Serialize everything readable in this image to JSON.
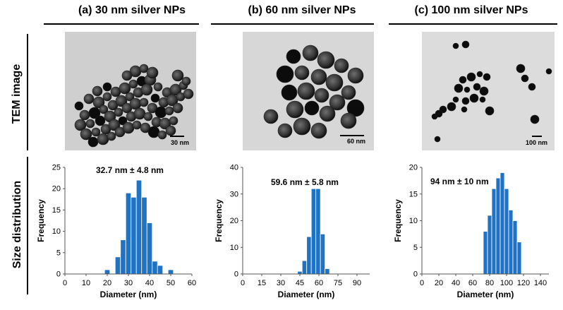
{
  "columns": [
    {
      "title": "(a) 30 nm silver NPs",
      "scale_bar": "30 nm"
    },
    {
      "title": "(b) 60 nm silver NPs",
      "scale_bar": "60 nm"
    },
    {
      "title": "(c) 100 nm silver NPs",
      "scale_bar": "100 nm"
    }
  ],
  "rows": {
    "tem": "TEM image",
    "size": "Size distribution"
  },
  "colors": {
    "bar": "#1f72c4",
    "tem_bg_a": "#cfcfcf",
    "tem_bg_b": "#d7d7d7",
    "tem_bg_c": "#dcdcdc"
  },
  "chart_data": [
    {
      "type": "bar",
      "annotation": "32.7 nm ± 4.8 nm",
      "xlabel": "Diameter (nm)",
      "ylabel": "Frequency",
      "xlim": [
        0,
        60
      ],
      "ylim": [
        0,
        25
      ],
      "xticks": [
        0,
        10,
        20,
        30,
        40,
        50,
        60
      ],
      "yticks": [
        0,
        5,
        10,
        15,
        20,
        25
      ],
      "bin_width": 2.5,
      "x": [
        17.5,
        20,
        22.5,
        25,
        27.5,
        30,
        32.5,
        35,
        37.5,
        40,
        42.5,
        45,
        47.5,
        50,
        52.5
      ],
      "values": [
        0,
        1,
        0,
        4,
        8,
        19,
        18,
        22,
        18,
        12,
        3,
        2,
        0,
        1,
        0
      ]
    },
    {
      "type": "bar",
      "annotation": "59.6 nm ± 5.8 nm",
      "xlabel": "Diameter (nm)",
      "ylabel": "Frequency",
      "xlim": [
        0,
        100
      ],
      "ylim": [
        0,
        40
      ],
      "xticks": [
        0,
        15,
        30,
        45,
        60,
        75,
        90
      ],
      "yticks": [
        0,
        10,
        20,
        30,
        40
      ],
      "bin_width": 3.6,
      "x": [
        45,
        48.6,
        52.2,
        55.8,
        59.4,
        63,
        66.6,
        70.2,
        73.8
      ],
      "values": [
        1,
        5,
        14,
        32,
        32,
        15,
        2,
        0,
        0
      ]
    },
    {
      "type": "bar",
      "annotation": "94 nm ± 10 nm",
      "xlabel": "Diameter (nm)",
      "ylabel": "Frequency",
      "xlim": [
        0,
        150
      ],
      "ylim": [
        0,
        20
      ],
      "xticks": [
        0,
        20,
        40,
        60,
        80,
        100,
        120,
        140
      ],
      "yticks": [
        0,
        5,
        10,
        15,
        20
      ],
      "bin_width": 5,
      "x": [
        75,
        80,
        85,
        90,
        95,
        100,
        105,
        110,
        115
      ],
      "values": [
        8,
        11,
        16,
        18,
        19,
        16,
        12,
        10,
        6
      ]
    }
  ]
}
